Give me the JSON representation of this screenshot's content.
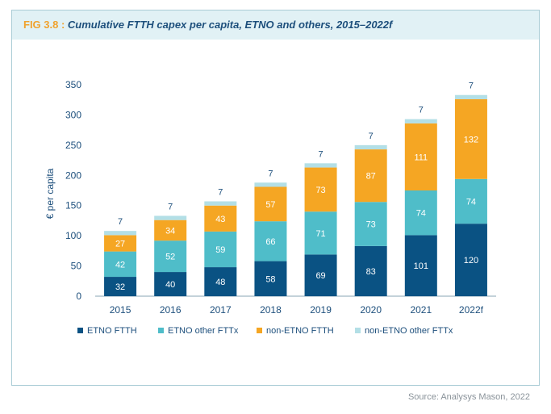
{
  "header": {
    "label": "FIG 3.8 :",
    "title": "Cumulative FTTH capex per capita, ETNO and others, 2015–2022f"
  },
  "source": "Source: Analysys Mason, 2022",
  "chart_data": {
    "type": "bar",
    "stacked": true,
    "categories": [
      "2015",
      "2016",
      "2017",
      "2018",
      "2019",
      "2020",
      "2021",
      "2022f"
    ],
    "series": [
      {
        "name": "ETNO FTTH",
        "color": "#0a5283",
        "label_color": "#ffffff",
        "values": [
          32,
          40,
          48,
          58,
          69,
          83,
          101,
          120
        ]
      },
      {
        "name": "ETNO other FTTx",
        "color": "#4fbdc9",
        "label_color": "#ffffff",
        "values": [
          42,
          52,
          59,
          66,
          71,
          73,
          74,
          74
        ]
      },
      {
        "name": "non-ETNO FTTH",
        "color": "#f5a623",
        "label_color": "#ffffff",
        "values": [
          27,
          34,
          43,
          57,
          73,
          87,
          111,
          132
        ]
      },
      {
        "name": "non-ETNO other FTTx",
        "color": "#b3dfe6",
        "label_color": "#1d4f7c",
        "values": [
          7,
          7,
          7,
          7,
          7,
          7,
          7,
          7
        ]
      }
    ],
    "ylabel": "€ per capita",
    "ylim": [
      0,
      350
    ],
    "yticks": [
      "0",
      "50",
      "100",
      "150",
      "200",
      "250",
      "300",
      "350"
    ],
    "grid": false,
    "legend_position": "bottom"
  }
}
